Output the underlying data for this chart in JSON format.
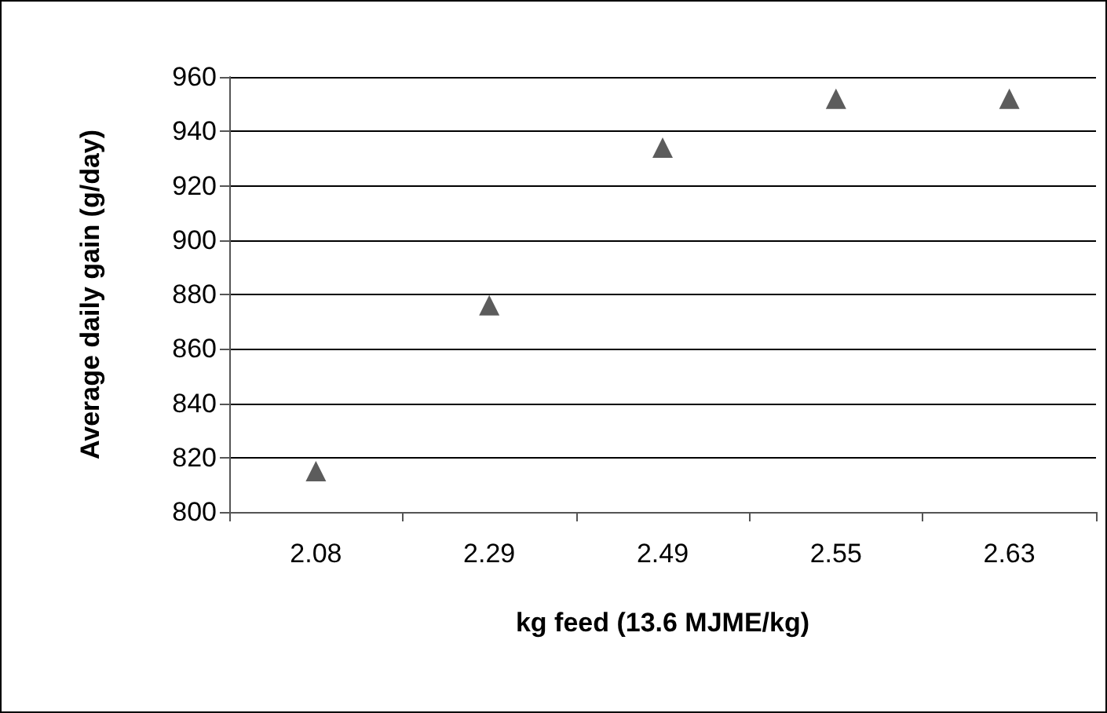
{
  "chart_data": {
    "type": "scatter",
    "xlabel": "kg feed (13.6 MJME/kg)",
    "ylabel": "Average daily gain (g/day)",
    "categories": [
      "2.08",
      "2.29",
      "2.49",
      "2.55",
      "2.63"
    ],
    "series": [
      {
        "color": "#333333",
        "values": [
          815,
          876,
          934,
          952,
          952
        ]
      }
    ],
    "ylim": [
      800,
      960
    ],
    "yticks": [
      800,
      820,
      840,
      860,
      880,
      900,
      920,
      940,
      960
    ],
    "grid": "y",
    "marker": "triangle"
  }
}
